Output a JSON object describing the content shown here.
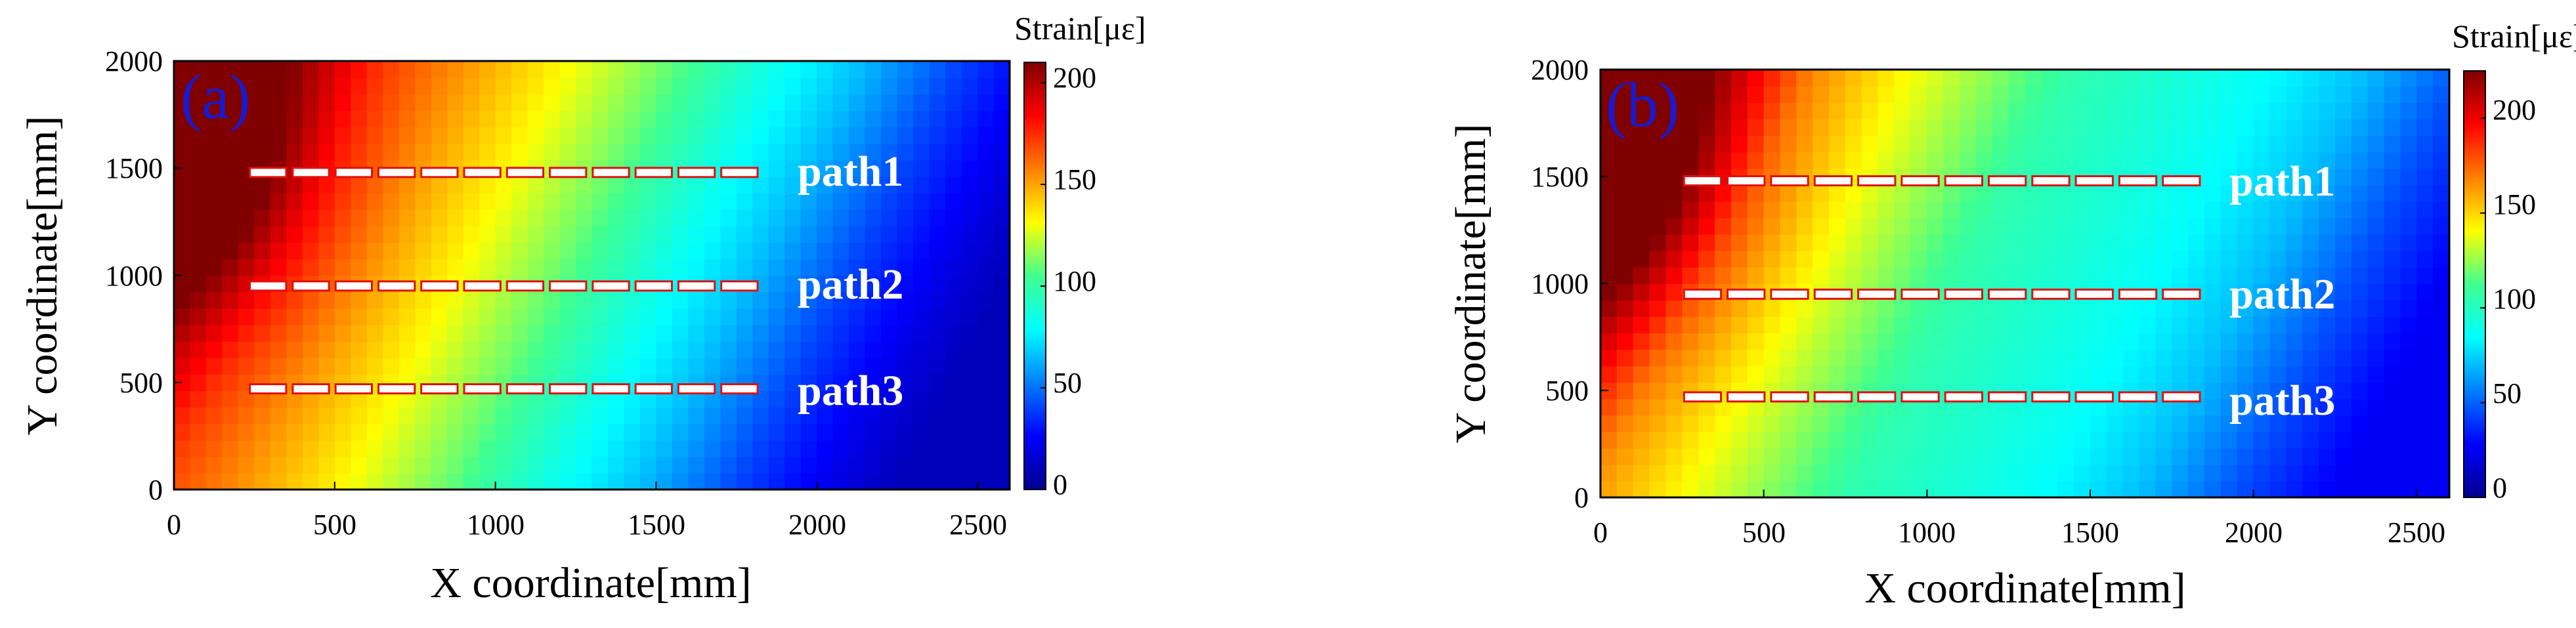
{
  "chart_data": [
    {
      "type": "heatmap",
      "panel_label": "(a)",
      "xlabel": "X coordinate[mm]",
      "ylabel": "Y coordinate[mm]",
      "xlim": [
        0,
        2600
      ],
      "ylim": [
        0,
        2000
      ],
      "x_ticks": [
        "0",
        "500",
        "1000",
        "1500",
        "2000",
        "2500"
      ],
      "y_ticks": [
        "0",
        "500",
        "1000",
        "1500",
        "2000"
      ],
      "colorbar": {
        "title": "Strain[με]",
        "range": [
          0,
          210
        ],
        "ticks": [
          "0",
          "50",
          "100",
          "150",
          "200"
        ]
      },
      "field": {
        "type": "contour",
        "peak": {
          "x": 0,
          "y": 1500,
          "value": 210
        },
        "strain_vs_x": [
          [
            0,
            200
          ],
          [
            300,
            170
          ],
          [
            600,
            150
          ],
          [
            900,
            130
          ],
          [
            1200,
            110
          ],
          [
            1500,
            85
          ],
          [
            1800,
            65
          ],
          [
            2100,
            40
          ],
          [
            2400,
            20
          ],
          [
            2600,
            10
          ]
        ]
      },
      "paths": [
        {
          "name": "path1",
          "y": 1480,
          "x_start": 230,
          "x_end": 1830,
          "segments": 12
        },
        {
          "name": "path2",
          "y": 950,
          "x_start": 230,
          "x_end": 1830,
          "segments": 12
        },
        {
          "name": "path3",
          "y": 470,
          "x_start": 230,
          "x_end": 1830,
          "segments": 12
        }
      ]
    },
    {
      "type": "heatmap",
      "panel_label": "(b)",
      "xlabel": "X coordinate[mm]",
      "ylabel": "Y coordinate[mm]",
      "xlim": [
        0,
        2600
      ],
      "ylim": [
        0,
        2000
      ],
      "x_ticks": [
        "0",
        "500",
        "1000",
        "1500",
        "2000",
        "2500"
      ],
      "y_ticks": [
        "0",
        "500",
        "1000",
        "1500",
        "2000"
      ],
      "colorbar": {
        "title": "Strain[με]",
        "range": [
          0,
          225
        ],
        "ticks": [
          "0",
          "50",
          "100",
          "150",
          "200"
        ]
      },
      "field": {
        "type": "contour",
        "peak": {
          "x": 0,
          "y": 1500,
          "value": 225
        },
        "strain_vs_x": [
          [
            0,
            210
          ],
          [
            300,
            165
          ],
          [
            600,
            140
          ],
          [
            900,
            120
          ],
          [
            1100,
            105
          ],
          [
            1400,
            95
          ],
          [
            1700,
            85
          ],
          [
            2000,
            70
          ],
          [
            2300,
            45
          ],
          [
            2600,
            25
          ]
        ]
      },
      "paths": [
        {
          "name": "path1",
          "y": 1480,
          "x_start": 250,
          "x_end": 1850,
          "segments": 12
        },
        {
          "name": "path2",
          "y": 950,
          "x_start": 250,
          "x_end": 1850,
          "segments": 12
        },
        {
          "name": "path3",
          "y": 470,
          "x_start": 250,
          "x_end": 1850,
          "segments": 12
        }
      ]
    }
  ]
}
